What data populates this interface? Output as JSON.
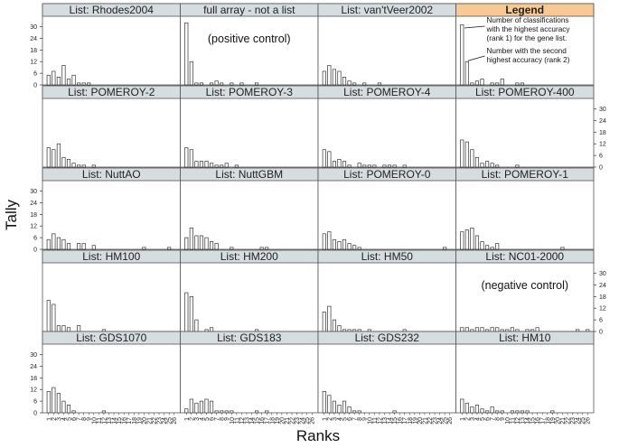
{
  "chart_data": {
    "type": "bar",
    "xlabel": "Ranks",
    "ylabel": "Tally",
    "ylim": [
      0,
      34
    ],
    "yticks": [
      0,
      6,
      12,
      18,
      24,
      30
    ],
    "xticks": [
      "1",
      "2",
      "3",
      "4",
      "5",
      "6",
      "7",
      "8",
      "9",
      "10",
      "11",
      "12",
      "13",
      "14",
      "15",
      "16",
      "17",
      "18",
      "19",
      "20",
      "21",
      "22",
      "23",
      "24",
      "25",
      "26"
    ],
    "legend": {
      "title": "Legend",
      "values": [
        31,
        12,
        1,
        2,
        3,
        0,
        1,
        1,
        3,
        0,
        0,
        1,
        1,
        0,
        0,
        0,
        0,
        0,
        0,
        0,
        0,
        0,
        0,
        0,
        0,
        0
      ],
      "note_rank1": [
        "Number of classifications",
        "with the highest accuracy",
        "(rank 1) for the gene list."
      ],
      "note_rank2": [
        "Number with the second",
        "highest accuracy (rank 2)"
      ]
    },
    "panels": [
      {
        "title": "List: Rhodes2004",
        "values": [
          5,
          7,
          4,
          10,
          3,
          5,
          1,
          1,
          1,
          0,
          0,
          0,
          0,
          0,
          0,
          0,
          0,
          0,
          0,
          0,
          0,
          0,
          0,
          0,
          0,
          0
        ]
      },
      {
        "title": "full array - not a list",
        "annotation": "(positive control)",
        "values": [
          32,
          12,
          1,
          1,
          0,
          1,
          2,
          1,
          0,
          1,
          0,
          1,
          0,
          0,
          1,
          0,
          0,
          0,
          0,
          0,
          0,
          0,
          0,
          0,
          0,
          0
        ]
      },
      {
        "title": "List: van'tVeer2002",
        "values": [
          7,
          10,
          8,
          7,
          4,
          2,
          1,
          0,
          1,
          0,
          0,
          1,
          0,
          0,
          0,
          0,
          0,
          0,
          0,
          0,
          0,
          0,
          0,
          0,
          0,
          0
        ]
      },
      {
        "title": "List: POMEROY-2",
        "values": [
          10,
          9,
          12,
          5,
          4,
          2,
          1,
          1,
          0,
          1,
          0,
          0,
          0,
          0,
          0,
          0,
          0,
          0,
          0,
          0,
          0,
          0,
          0,
          0,
          0,
          0
        ]
      },
      {
        "title": "List: POMEROY-3",
        "values": [
          10,
          9,
          3,
          3,
          3,
          2,
          1,
          1,
          2,
          0,
          1,
          0,
          0,
          0,
          0,
          0,
          0,
          0,
          0,
          0,
          0,
          0,
          0,
          0,
          0,
          0
        ]
      },
      {
        "title": "List: POMEROY-4",
        "values": [
          9,
          8,
          3,
          4,
          3,
          1,
          0,
          2,
          1,
          1,
          1,
          0,
          1,
          1,
          1,
          0,
          1,
          0,
          0,
          0,
          0,
          0,
          0,
          0,
          0,
          0
        ]
      },
      {
        "title": "List: POMEROY-400",
        "values": [
          14,
          13,
          9,
          5,
          2,
          3,
          2,
          1,
          0,
          0,
          0,
          1,
          0,
          0,
          0,
          0,
          0,
          0,
          0,
          0,
          0,
          0,
          0,
          0,
          0,
          0
        ]
      },
      {
        "title": "List: NuttAO",
        "values": [
          5,
          8,
          6,
          5,
          3,
          0,
          3,
          3,
          0,
          2,
          0,
          0,
          0,
          0,
          0,
          0,
          0,
          0,
          0,
          1,
          0,
          0,
          0,
          0,
          1,
          0
        ]
      },
      {
        "title": "List: NuttGBM",
        "values": [
          6,
          11,
          7,
          7,
          6,
          4,
          3,
          0,
          0,
          1,
          0,
          0,
          0,
          0,
          0,
          1,
          1,
          0,
          0,
          0,
          0,
          0,
          0,
          0,
          0,
          0
        ]
      },
      {
        "title": "List: POMEROY-0",
        "values": [
          8,
          9,
          5,
          4,
          5,
          3,
          2,
          1,
          0,
          0,
          0,
          0,
          0,
          0,
          0,
          0,
          0,
          0,
          0,
          0,
          0,
          0,
          0,
          0,
          1,
          0
        ]
      },
      {
        "title": "List: POMEROY-1",
        "values": [
          9,
          10,
          11,
          7,
          4,
          2,
          1,
          3,
          0,
          0,
          0,
          0,
          0,
          0,
          0,
          0,
          0,
          0,
          0,
          0,
          1,
          0,
          0,
          0,
          0,
          0
        ]
      },
      {
        "title": "List: HM100",
        "values": [
          16,
          14,
          3,
          3,
          2,
          0,
          3,
          0,
          0,
          0,
          0,
          1,
          0,
          0,
          0,
          0,
          0,
          0,
          0,
          0,
          0,
          0,
          0,
          0,
          0,
          0
        ]
      },
      {
        "title": "List: HM200",
        "values": [
          20,
          18,
          6,
          0,
          1,
          2,
          0,
          0,
          0,
          0,
          0,
          0,
          0,
          0,
          1,
          0,
          0,
          0,
          0,
          0,
          0,
          0,
          0,
          0,
          0,
          0
        ]
      },
      {
        "title": "List: HM50",
        "values": [
          10,
          13,
          6,
          3,
          1,
          1,
          1,
          1,
          0,
          1,
          0,
          0,
          0,
          0,
          0,
          0,
          1,
          0,
          0,
          0,
          0,
          0,
          0,
          0,
          0,
          0
        ]
      },
      {
        "title": "List: NC01-2000",
        "annotation": "(negative control)",
        "values": [
          2,
          2,
          1,
          2,
          2,
          1,
          2,
          2,
          1,
          1,
          2,
          1,
          0,
          1,
          1,
          2,
          0,
          0,
          0,
          0,
          0,
          0,
          0,
          1,
          0,
          1
        ]
      },
      {
        "title": "List: GDS1070",
        "values": [
          11,
          13,
          10,
          6,
          4,
          1,
          0,
          0,
          0,
          0,
          0,
          1,
          0,
          0,
          0,
          0,
          0,
          0,
          0,
          0,
          0,
          0,
          0,
          0,
          0,
          0
        ]
      },
      {
        "title": "List: GDS183",
        "values": [
          2,
          7,
          5,
          6,
          7,
          6,
          1,
          1,
          1,
          1,
          0,
          0,
          0,
          0,
          1,
          0,
          1,
          0,
          0,
          0,
          0,
          0,
          0,
          0,
          0,
          0
        ]
      },
      {
        "title": "List: GDS232",
        "values": [
          11,
          9,
          6,
          4,
          6,
          3,
          1,
          1,
          0,
          0,
          0,
          0,
          0,
          0,
          1,
          0,
          0,
          0,
          0,
          0,
          0,
          0,
          0,
          0,
          0,
          0
        ]
      },
      {
        "title": "List: HM10",
        "values": [
          7,
          5,
          3,
          4,
          2,
          1,
          3,
          1,
          1,
          0,
          1,
          1,
          1,
          1,
          0,
          0,
          0,
          0,
          1,
          0,
          0,
          0,
          0,
          0,
          0,
          0
        ]
      }
    ]
  }
}
